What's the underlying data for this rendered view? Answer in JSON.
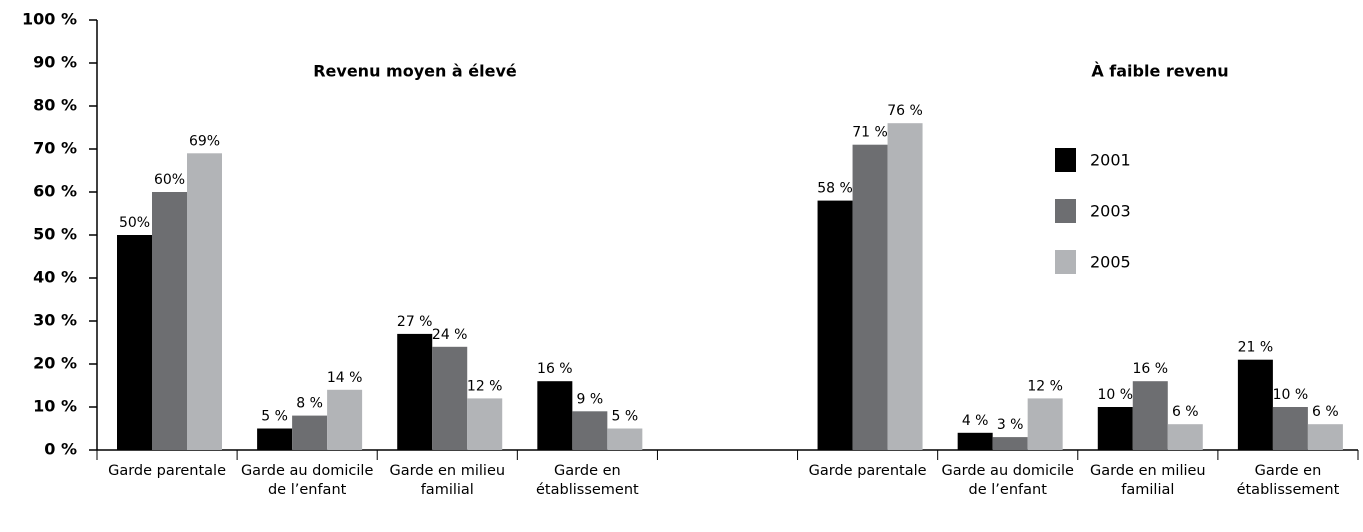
{
  "chart_data": {
    "type": "bar",
    "annotations": [
      "Revenu moyen à élevé",
      "À faible revenu"
    ],
    "categories": [
      "Garde parentale",
      "Garde au domicile de l’enfant",
      "Garde en milieu familial",
      "Garde en établissement",
      null,
      "Garde parentale",
      "Garde au domicile de l’enfant",
      "Garde en milieu familial",
      "Garde en établissement"
    ],
    "series": [
      {
        "name": "2001",
        "color": "#000000",
        "values": [
          50,
          5,
          27,
          16,
          null,
          58,
          4,
          10,
          21
        ],
        "value_labels": [
          "50%",
          "5 %",
          "27 %",
          "16 %",
          null,
          "58 %",
          "4 %",
          "10 %",
          "21 %"
        ]
      },
      {
        "name": "2003",
        "color": "#6d6e71",
        "values": [
          60,
          8,
          24,
          9,
          null,
          71,
          3,
          16,
          10
        ],
        "value_labels": [
          "60%",
          "8 %",
          "24 %",
          "9 %",
          null,
          "71 %",
          "3 %",
          "16 %",
          "10 %"
        ]
      },
      {
        "name": "2005",
        "color": "#b2b4b7",
        "values": [
          69,
          14,
          12,
          5,
          null,
          76,
          12,
          6,
          6
        ],
        "value_labels": [
          "69%",
          "14 %",
          "12 %",
          "5 %",
          null,
          "76 %",
          "12 %",
          "6 %",
          "6 %"
        ]
      }
    ],
    "ylim": [
      0,
      100
    ],
    "yticks": [
      {
        "value": 0,
        "label": "0 %"
      },
      {
        "value": 10,
        "label": "10 %"
      },
      {
        "value": 20,
        "label": "20 %"
      },
      {
        "value": 30,
        "label": "30 %"
      },
      {
        "value": 40,
        "label": "40 %"
      },
      {
        "value": 50,
        "label": "50 %"
      },
      {
        "value": 60,
        "label": "60 %"
      },
      {
        "value": 70,
        "label": "70 %"
      },
      {
        "value": 80,
        "label": "80 %"
      },
      {
        "value": 90,
        "label": "90 %"
      },
      {
        "value": 100,
        "label": "100 %"
      }
    ],
    "legend": "upper right",
    "grid": false
  }
}
